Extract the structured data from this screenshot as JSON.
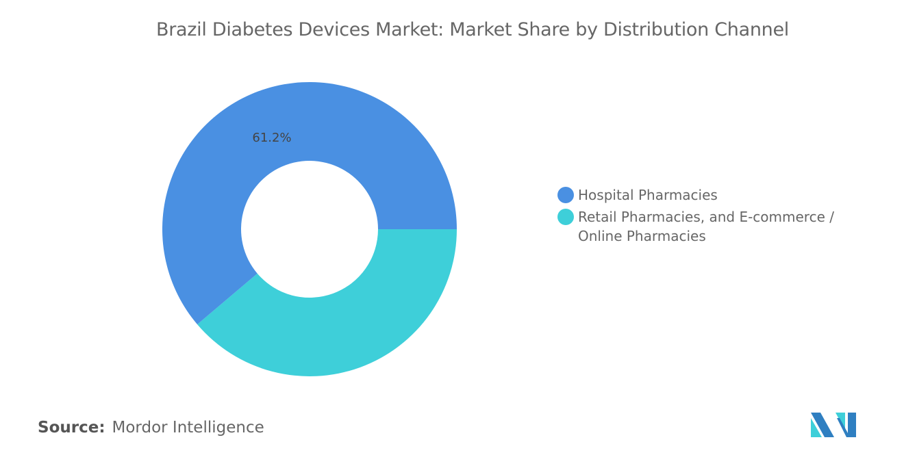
{
  "chart_data": {
    "type": "pie",
    "subtype": "donut",
    "title": "Brazil Diabetes Devices Market: Market Share by Distribution Channel",
    "categories": [
      "Hospital Pharmacies",
      "Retail Pharmacies, and E-commerce / Online Pharmacies"
    ],
    "values": [
      61.2,
      38.8
    ],
    "unit": "%",
    "data_labels": [
      "61.2%",
      ""
    ],
    "colors": [
      "#4a90e2",
      "#3ecfd9"
    ],
    "legend_placement": "right"
  },
  "source": {
    "label": "Source:",
    "value": "Mordor Intelligence"
  },
  "logo": {
    "name": "Mordor Intelligence logo",
    "colors": [
      "#2f7fc1",
      "#3ecfd9"
    ]
  }
}
